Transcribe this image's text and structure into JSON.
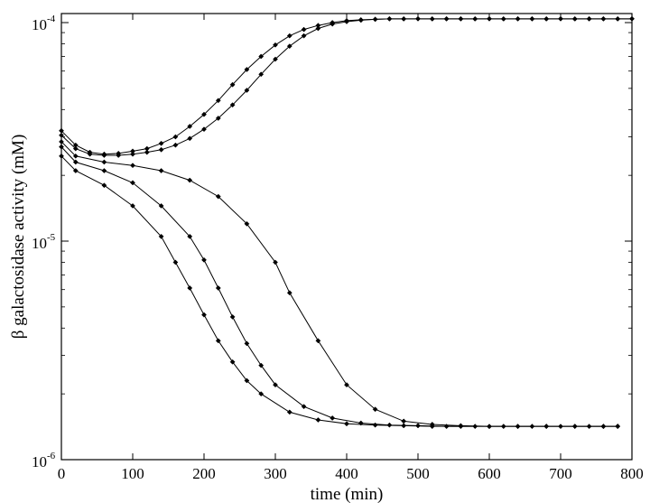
{
  "chart_data": {
    "type": "line",
    "xlabel": "time (min)",
    "ylabel": "β galactosidase activity  (mM)",
    "xlim": [
      0,
      800
    ],
    "ylim": [
      1e-06,
      0.00011
    ],
    "y_scale": "log",
    "grid": false,
    "x_ticks": [
      "0",
      "100",
      "200",
      "300",
      "400",
      "500",
      "600",
      "700",
      "800"
    ],
    "y_ticks": [
      {
        "value": 1e-06,
        "base": "10",
        "exp": "-6"
      },
      {
        "value": 1e-05,
        "base": "10",
        "exp": "-5"
      },
      {
        "value": 0.0001,
        "base": "10",
        "exp": "-4"
      }
    ],
    "series": [
      {
        "x": [
          0,
          20,
          40,
          60,
          80,
          100,
          120,
          140,
          160,
          180,
          200,
          220,
          240,
          260,
          280,
          300,
          320,
          340,
          360,
          380,
          400,
          420,
          440,
          460,
          480,
          500,
          520,
          540,
          560,
          580,
          600,
          620,
          640,
          660,
          680,
          700,
          720,
          740,
          760,
          780,
          800
        ],
        "y": [
          3.2e-05,
          2.75e-05,
          2.55e-05,
          2.5e-05,
          2.52e-05,
          2.58e-05,
          2.65e-05,
          2.8e-05,
          3e-05,
          3.35e-05,
          3.8e-05,
          4.4e-05,
          5.2e-05,
          6.1e-05,
          7e-05,
          7.9e-05,
          8.7e-05,
          9.3e-05,
          9.7e-05,
          0.0001,
          0.000102,
          0.000103,
          0.0001035,
          0.000104,
          0.000104,
          0.000104,
          0.000104,
          0.000104,
          0.000104,
          0.000104,
          0.000104,
          0.000104,
          0.000104,
          0.000104,
          0.000104,
          0.000104,
          0.000104,
          0.000104,
          0.000104,
          0.000104,
          0.000104
        ]
      },
      {
        "x": [
          0,
          20,
          40,
          60,
          80,
          100,
          120,
          140,
          160,
          180,
          200,
          220,
          240,
          260,
          280,
          300,
          320,
          340,
          360,
          380,
          400,
          420,
          440,
          460,
          480,
          500,
          520,
          540,
          560,
          580,
          600,
          620,
          640,
          660,
          680,
          700,
          720,
          740,
          760,
          780,
          800
        ],
        "y": [
          3.05e-05,
          2.65e-05,
          2.5e-05,
          2.47e-05,
          2.47e-05,
          2.5e-05,
          2.55e-05,
          2.62e-05,
          2.75e-05,
          2.95e-05,
          3.25e-05,
          3.65e-05,
          4.2e-05,
          4.9e-05,
          5.8e-05,
          6.8e-05,
          7.8e-05,
          8.7e-05,
          9.4e-05,
          9.85e-05,
          0.000101,
          0.0001025,
          0.0001035,
          0.000104,
          0.000104,
          0.000104,
          0.000104,
          0.000104,
          0.000104,
          0.000104,
          0.000104,
          0.000104,
          0.000104,
          0.000104,
          0.000104,
          0.000104,
          0.000104,
          0.000104,
          0.000104,
          0.000104,
          0.000104
        ]
      },
      {
        "x": [
          0,
          20,
          60,
          100,
          140,
          180,
          220,
          260,
          300,
          320,
          360,
          400,
          440,
          480,
          520,
          560,
          600,
          640,
          680,
          720,
          760,
          780
        ],
        "y": [
          2.85e-05,
          2.45e-05,
          2.3e-05,
          2.22e-05,
          2.1e-05,
          1.9e-05,
          1.6e-05,
          1.2e-05,
          8e-06,
          5.8e-06,
          3.5e-06,
          2.2e-06,
          1.7e-06,
          1.5e-06,
          1.45e-06,
          1.43e-06,
          1.42e-06,
          1.42e-06,
          1.42e-06,
          1.42e-06,
          1.42e-06,
          1.42e-06
        ]
      },
      {
        "x": [
          0,
          20,
          60,
          100,
          140,
          180,
          200,
          220,
          240,
          260,
          280,
          300,
          340,
          380,
          420,
          460,
          500,
          540,
          580,
          620,
          660,
          700,
          740,
          780
        ],
        "y": [
          2.7e-05,
          2.3e-05,
          2.1e-05,
          1.85e-05,
          1.45e-05,
          1.05e-05,
          8.2e-06,
          6.1e-06,
          4.5e-06,
          3.4e-06,
          2.7e-06,
          2.2e-06,
          1.75e-06,
          1.55e-06,
          1.47e-06,
          1.44e-06,
          1.43e-06,
          1.42e-06,
          1.42e-06,
          1.42e-06,
          1.42e-06,
          1.42e-06,
          1.42e-06,
          1.42e-06
        ]
      },
      {
        "x": [
          0,
          20,
          60,
          100,
          140,
          160,
          180,
          200,
          220,
          240,
          260,
          280,
          320,
          360,
          400,
          440,
          480,
          520,
          560,
          600,
          640,
          680,
          720,
          760,
          780
        ],
        "y": [
          2.45e-05,
          2.1e-05,
          1.8e-05,
          1.45e-05,
          1.05e-05,
          8e-06,
          6.1e-06,
          4.6e-06,
          3.5e-06,
          2.8e-06,
          2.3e-06,
          2e-06,
          1.65e-06,
          1.52e-06,
          1.46e-06,
          1.44e-06,
          1.43e-06,
          1.42e-06,
          1.42e-06,
          1.42e-06,
          1.42e-06,
          1.42e-06,
          1.42e-06,
          1.42e-06,
          1.42e-06
        ]
      }
    ]
  }
}
